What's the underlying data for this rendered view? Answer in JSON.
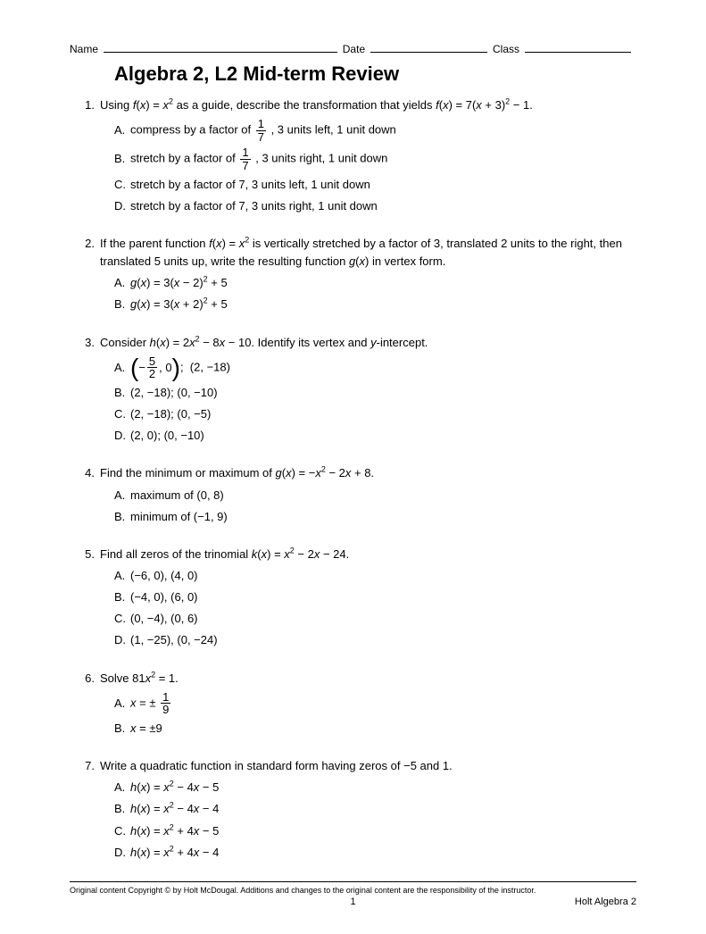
{
  "header": {
    "name_label": "Name",
    "date_label": "Date",
    "class_label": "Class"
  },
  "title": "Algebra 2, L2 Mid-term Review",
  "questions": [
    {
      "num": "1.",
      "stem_html": "Using <i class='var'>f</i>(<i class='var'>x</i>) = <i class='var'>x</i><sup>2</sup> as a guide, describe the transformation that yields <i class='var'>f</i>(<i class='var'>x</i>) = 7(<i class='var'>x</i> + 3)<sup>2</sup> − 1.",
      "choices": [
        {
          "letter": "A.",
          "html": "compress by a factor of <span class='frac'><span class='num'>1</span><span class='den'>7</span></span> , 3 units left, 1 unit down"
        },
        {
          "letter": "B.",
          "html": "stretch by a factor of <span class='frac'><span class='num'>1</span><span class='den'>7</span></span> , 3 units right, 1 unit down"
        },
        {
          "letter": "C.",
          "html": "stretch by a factor of 7, 3 units left, 1 unit down"
        },
        {
          "letter": "D.",
          "html": "stretch by a factor of 7, 3 units right, 1 unit down"
        }
      ]
    },
    {
      "num": "2.",
      "stem_html": "If the parent function <i class='var'>f</i>(<i class='var'>x</i>) = <i class='var'>x</i><sup>2</sup> is vertically stretched by a factor of 3, translated 2 units to the right, then translated 5 units up, write the resulting function <i class='var'>g</i>(<i class='var'>x</i>) in vertex form.",
      "choices": [
        {
          "letter": "A.",
          "html": "<i class='var'>g</i>(<i class='var'>x</i>) = 3(<i class='var'>x</i> − 2)<sup>2</sup> + 5"
        },
        {
          "letter": "B.",
          "html": "<i class='var'>g</i>(<i class='var'>x</i>) = 3(<i class='var'>x</i> + 2)<sup>2</sup> + 5"
        }
      ]
    },
    {
      "num": "3.",
      "stem_html": "Consider <i class='var'>h</i>(<i class='var'>x</i>) = 2<i class='var'>x</i><sup>2</sup> − 8<i class='var'>x</i> − 10. Identify its vertex and <i class='var'>y</i>-intercept.",
      "choices": [
        {
          "letter": "A.",
          "html": "<span class='paren-wrap'><span class='bigparen'>(</span>− <span class='frac'><span class='num'>5</span><span class='den'>2</span></span>, 0<span class='bigparen'>)</span></span>;&nbsp; (2, −18)"
        },
        {
          "letter": "B.",
          "html": "(2, −18); (0, −10)"
        },
        {
          "letter": "C.",
          "html": "(2, −18); (0, −5)"
        },
        {
          "letter": "D.",
          "html": "(2, 0); (0, −10)"
        }
      ]
    },
    {
      "num": "4.",
      "stem_html": "Find the minimum or maximum of <i class='var'>g</i>(<i class='var'>x</i>) = −<i class='var'>x</i><sup>2</sup> − 2<i class='var'>x</i> + 8.",
      "choices": [
        {
          "letter": "A.",
          "html": "maximum of (0, 8)"
        },
        {
          "letter": "B.",
          "html": "minimum of (−1, 9)"
        }
      ]
    },
    {
      "num": "5.",
      "stem_html": "Find all zeros of the trinomial <i class='var'>k</i>(<i class='var'>x</i>) = <i class='var'>x</i><sup>2</sup> − 2<i class='var'>x</i> − 24.",
      "choices": [
        {
          "letter": "A.",
          "html": "(−6, 0), (4, 0)"
        },
        {
          "letter": "B.",
          "html": "(−4, 0), (6, 0)"
        },
        {
          "letter": "C.",
          "html": "(0, −4), (0, 6)"
        },
        {
          "letter": "D.",
          "html": "(1, −25), (0, −24)"
        }
      ]
    },
    {
      "num": "6.",
      "stem_html": "Solve 81<i class='var'>x</i><sup>2</sup> = 1.",
      "choices": [
        {
          "letter": "A.",
          "html": "<i class='var'>x</i> = ± <span class='frac'><span class='num'>1</span><span class='den'>9</span></span>"
        },
        {
          "letter": "B.",
          "html": "<i class='var'>x</i> = ±9"
        }
      ]
    },
    {
      "num": "7.",
      "stem_html": "Write a quadratic function in standard form having zeros of −5 and 1.",
      "choices": [
        {
          "letter": "A.",
          "html": "<i class='var'>h</i>(<i class='var'>x</i>) = <i class='var'>x</i><sup>2</sup> − 4<i class='var'>x</i> − 5"
        },
        {
          "letter": "B.",
          "html": "<i class='var'>h</i>(<i class='var'>x</i>) = <i class='var'>x</i><sup>2</sup> − 4<i class='var'>x</i> − 4"
        },
        {
          "letter": "C.",
          "html": "<i class='var'>h</i>(<i class='var'>x</i>) = <i class='var'>x</i><sup>2</sup> + 4<i class='var'>x</i> − 5"
        },
        {
          "letter": "D.",
          "html": "<i class='var'>h</i>(<i class='var'>x</i>) = <i class='var'>x</i><sup>2</sup> + 4<i class='var'>x</i> − 4"
        }
      ]
    }
  ],
  "footer": {
    "copyright": "Original content Copyright © by Holt McDougal. Additions and changes to the original content are the responsibility of the instructor.",
    "page_number": "1",
    "book": "Holt Algebra 2"
  }
}
